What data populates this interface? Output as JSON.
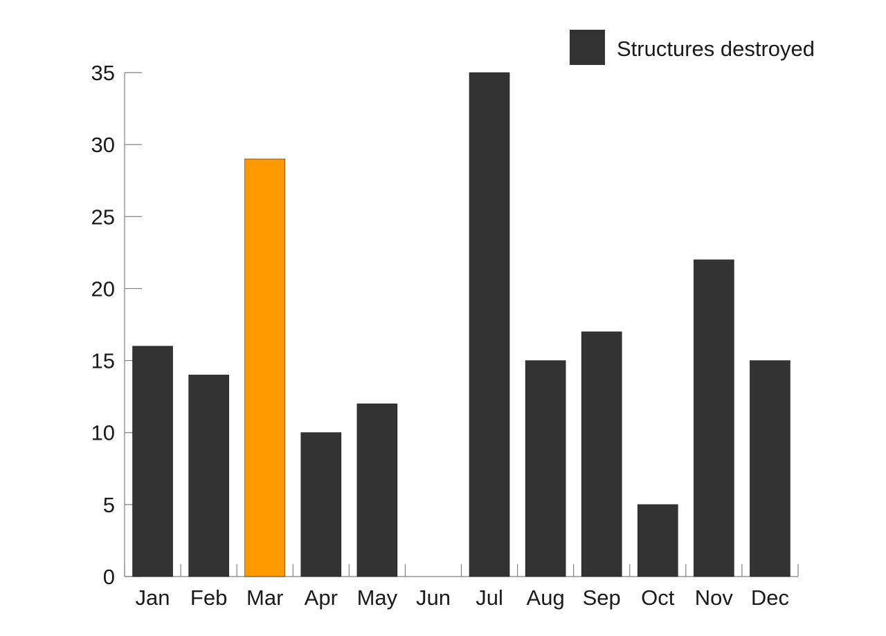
{
  "chart_data": {
    "type": "bar",
    "title": "",
    "xlabel": "",
    "ylabel": "",
    "categories": [
      "Jan",
      "Feb",
      "Mar",
      "Apr",
      "May",
      "Jun",
      "Jul",
      "Aug",
      "Sep",
      "Oct",
      "Nov",
      "Dec"
    ],
    "series": [
      {
        "name": "Structures destroyed",
        "values": [
          16,
          14,
          29,
          10,
          12,
          0,
          35,
          15,
          17,
          5,
          22,
          15
        ]
      }
    ],
    "highlight": {
      "category": "Mar",
      "color": "#ff9900"
    },
    "bar_color": "#333333",
    "ylim": [
      0,
      35
    ],
    "yticks": [
      0,
      5,
      10,
      15,
      20,
      25,
      30,
      35
    ],
    "grid": false,
    "legend": {
      "position": "top-right"
    }
  }
}
